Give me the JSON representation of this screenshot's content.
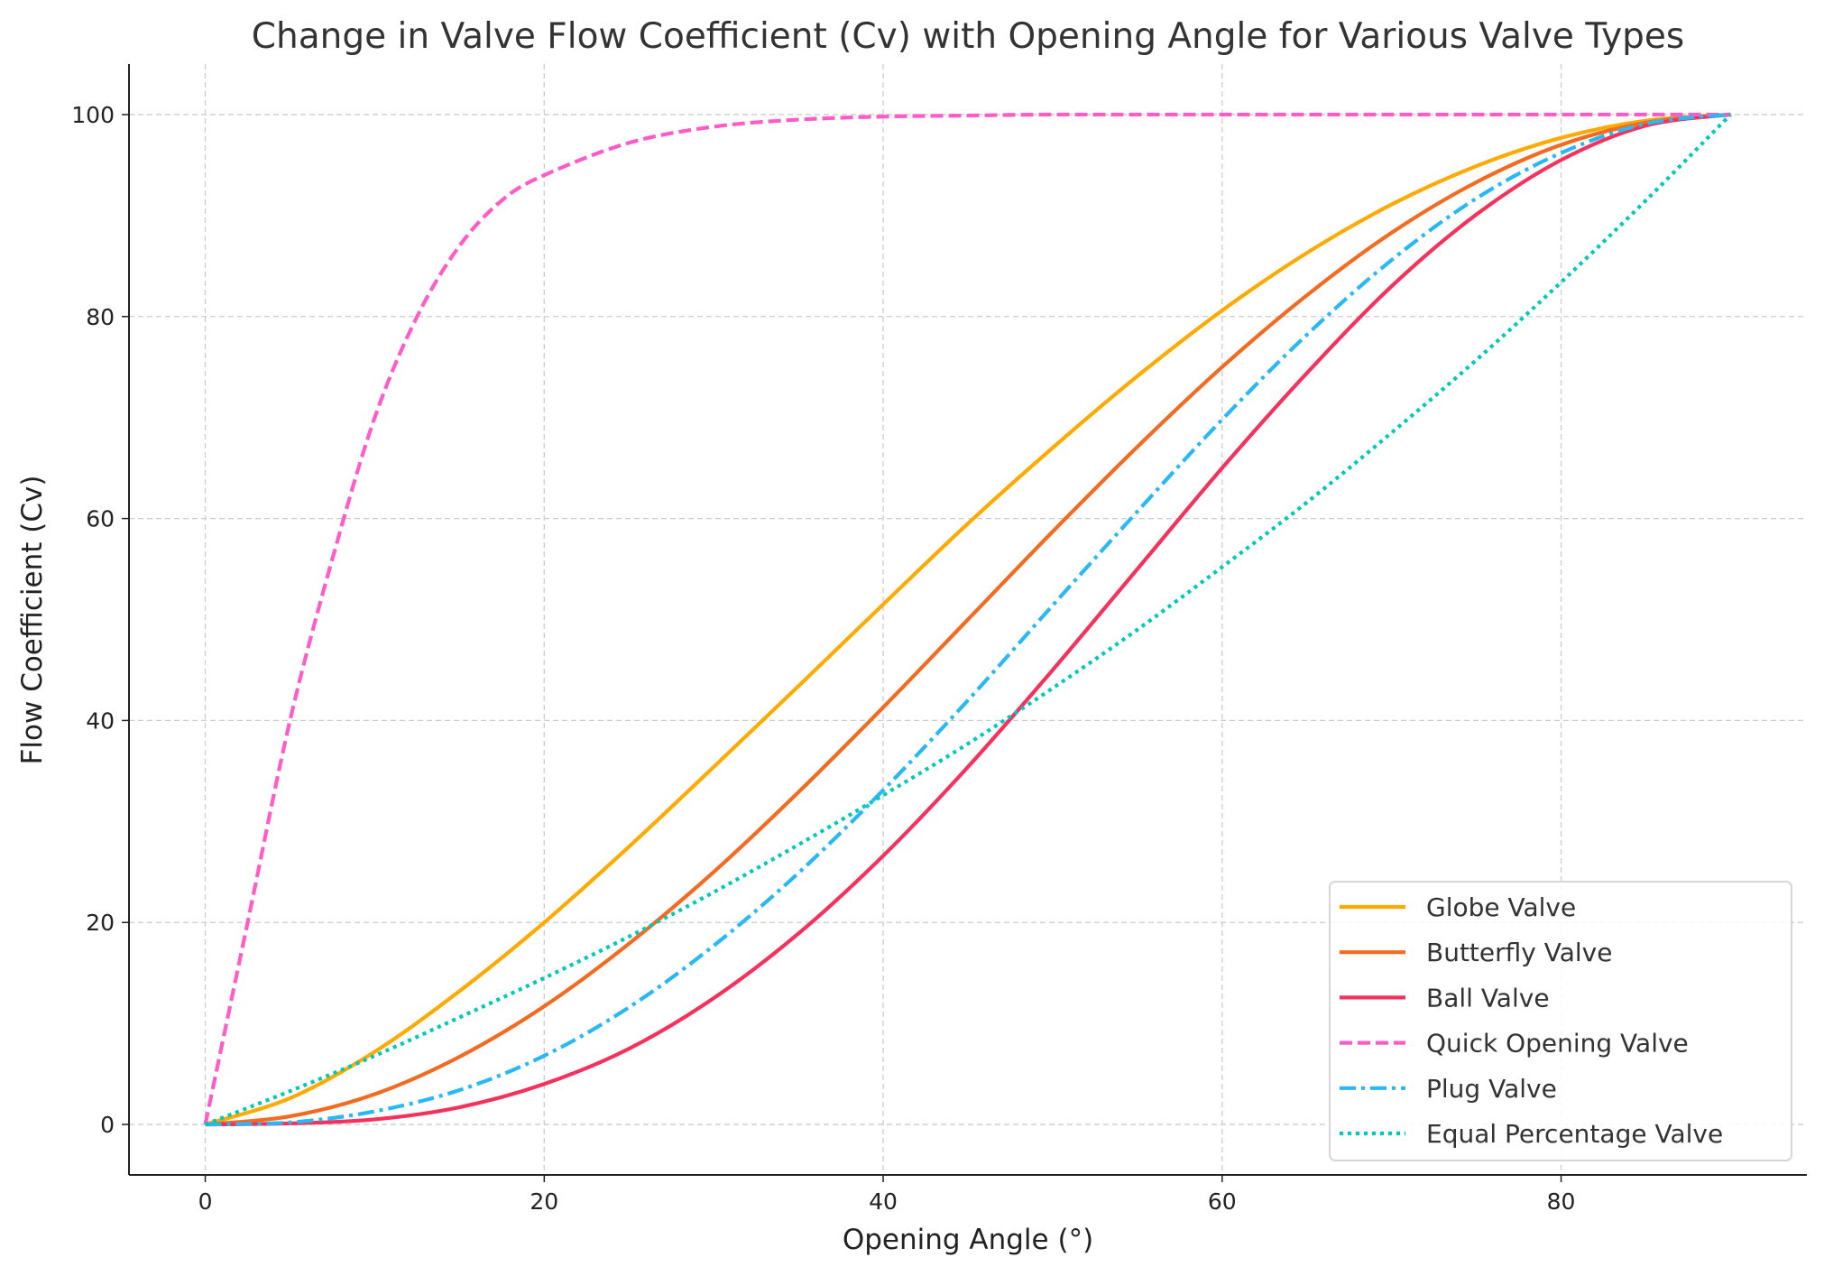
{
  "chart_data": {
    "type": "line",
    "title": "Change in Valve Flow Coefficient (Cv) with Opening Angle for Various Valve Types",
    "xlabel": "Opening Angle (°)",
    "ylabel": "Flow Coefficient (Cv)",
    "xlim": [
      -4.5,
      94.5
    ],
    "ylim": [
      -5,
      105
    ],
    "xticks": [
      0,
      20,
      40,
      60,
      80
    ],
    "yticks": [
      0,
      20,
      40,
      60,
      80,
      100
    ],
    "grid": true,
    "legend_position": "lower-right",
    "series": [
      {
        "name": "Globe Valve",
        "color": "#FFAA00",
        "style": "solid",
        "x": [
          0,
          5,
          10,
          15,
          20,
          25,
          30,
          35,
          40,
          45,
          50,
          55,
          60,
          65,
          70,
          75,
          80,
          85,
          90
        ],
        "y": [
          0,
          2.6,
          7.2,
          13.2,
          20.0,
          27.5,
          35.4,
          43.4,
          51.5,
          59.5,
          67.0,
          74.1,
          80.6,
          86.3,
          91.1,
          94.9,
          97.7,
          99.4,
          100
        ]
      },
      {
        "name": "Butterfly Valve",
        "color": "#F26B21",
        "style": "solid",
        "x": [
          0,
          5,
          10,
          15,
          20,
          25,
          30,
          35,
          40,
          45,
          50,
          55,
          60,
          65,
          70,
          75,
          80,
          85,
          90
        ],
        "y": [
          0,
          0.8,
          3.0,
          6.7,
          11.7,
          17.9,
          25.0,
          32.9,
          41.3,
          50.0,
          58.7,
          67.1,
          75.0,
          82.1,
          88.3,
          93.3,
          97.0,
          99.2,
          100
        ]
      },
      {
        "name": "Ball Valve",
        "color": "#F5325B",
        "style": "solid",
        "x": [
          0,
          5,
          10,
          15,
          20,
          25,
          30,
          35,
          40,
          45,
          50,
          55,
          60,
          65,
          70,
          75,
          80,
          85,
          90
        ],
        "y": [
          0,
          0.1,
          0.5,
          1.7,
          4.0,
          7.5,
          12.5,
          18.9,
          26.6,
          35.4,
          45.0,
          55.0,
          65.0,
          74.4,
          83.0,
          90.1,
          95.5,
          98.9,
          100
        ]
      },
      {
        "name": "Quick Opening Valve",
        "color": "#FF5CC8",
        "style": "dashed",
        "x": [
          0,
          2.5,
          5,
          7.5,
          10,
          12.5,
          15,
          17.5,
          20,
          25,
          30,
          35,
          40,
          45,
          50,
          60,
          70,
          80,
          90
        ],
        "y": [
          0,
          20,
          40,
          56,
          70,
          80,
          87,
          91.5,
          94,
          97.2,
          98.8,
          99.5,
          99.8,
          99.9,
          100,
          100,
          100,
          100,
          100
        ]
      },
      {
        "name": "Plug Valve",
        "color": "#29B8F5",
        "style": "dashdot",
        "x": [
          0,
          5,
          10,
          15,
          20,
          25,
          30,
          35,
          40,
          45,
          50,
          55,
          60,
          65,
          70,
          75,
          80,
          85,
          90
        ],
        "y": [
          0,
          0.2,
          1.3,
          3.4,
          6.8,
          11.6,
          17.7,
          24.9,
          33.1,
          42.0,
          51.4,
          60.7,
          69.8,
          78.2,
          85.6,
          91.7,
          96.2,
          99.1,
          100
        ]
      },
      {
        "name": "Equal Percentage Valve",
        "color": "#00C9B7",
        "style": "dotted",
        "x": [
          0,
          5,
          10,
          15,
          20,
          25,
          30,
          35,
          40,
          45,
          50,
          55,
          60,
          65,
          70,
          75,
          80,
          85,
          90
        ],
        "y": [
          0,
          3.3,
          6.8,
          10.6,
          14.5,
          18.6,
          23.0,
          27.7,
          32.6,
          37.7,
          43.2,
          49.0,
          55.2,
          61.6,
          68.5,
          75.7,
          83.4,
          91.5,
          100
        ]
      }
    ]
  }
}
